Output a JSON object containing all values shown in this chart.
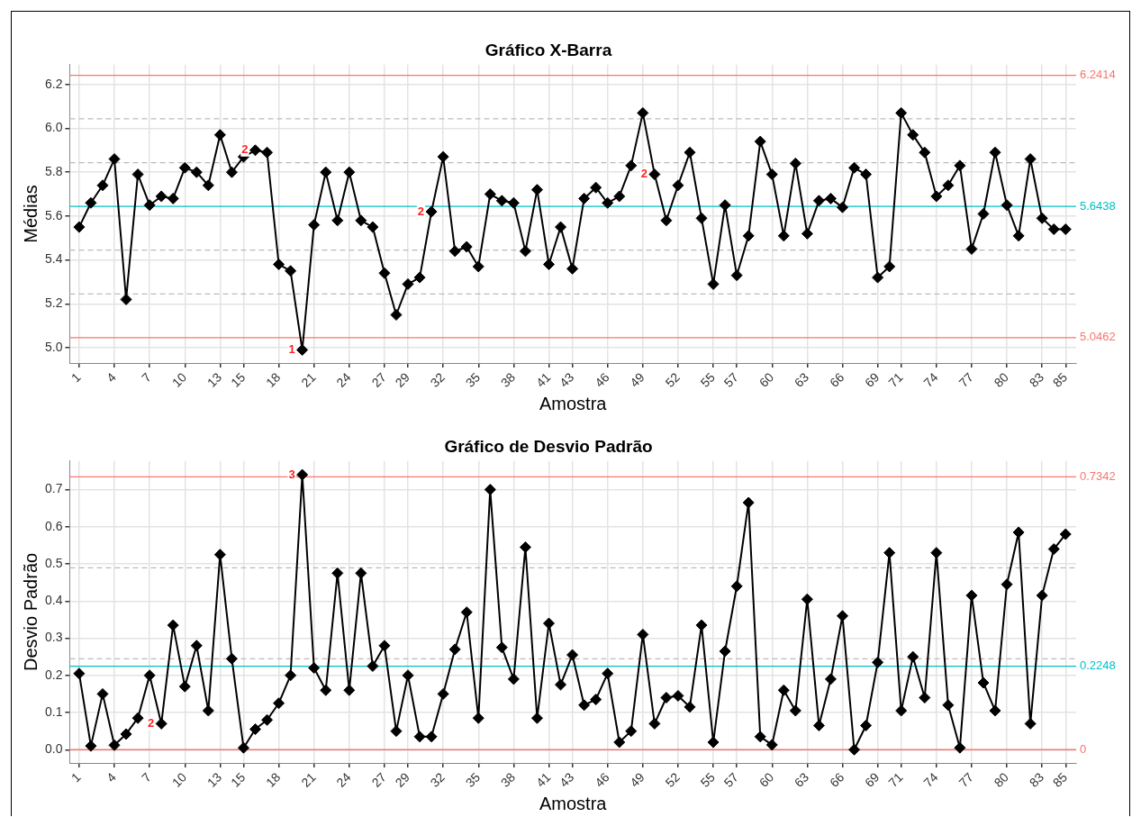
{
  "chart_data": [
    {
      "type": "line",
      "title": "Gráfico X-Barra",
      "xlabel": "Amostra",
      "ylabel": "Médias",
      "color": "#000000",
      "marker": "diamond",
      "grid": true,
      "x": [
        1,
        2,
        3,
        4,
        5,
        6,
        7,
        8,
        9,
        10,
        11,
        12,
        13,
        14,
        15,
        16,
        17,
        18,
        19,
        20,
        21,
        22,
        23,
        24,
        25,
        26,
        27,
        28,
        29,
        30,
        31,
        32,
        33,
        34,
        35,
        36,
        37,
        38,
        39,
        40,
        41,
        42,
        43,
        44,
        45,
        46,
        47,
        48,
        49,
        50,
        51,
        52,
        53,
        54,
        55,
        56,
        57,
        58,
        59,
        60,
        61,
        62,
        63,
        64,
        65,
        66,
        67,
        68,
        69,
        70,
        71,
        72,
        73,
        74,
        75,
        76,
        77,
        78,
        79,
        80,
        81,
        82,
        83,
        84,
        85
      ],
      "values": [
        5.55,
        5.66,
        5.74,
        5.86,
        5.22,
        5.79,
        5.65,
        5.69,
        5.68,
        5.82,
        5.8,
        5.74,
        5.97,
        5.8,
        5.87,
        5.9,
        5.89,
        5.38,
        5.35,
        4.99,
        5.56,
        5.8,
        5.58,
        5.8,
        5.58,
        5.55,
        5.34,
        5.15,
        5.29,
        5.32,
        5.62,
        5.87,
        5.44,
        5.46,
        5.37,
        5.7,
        5.67,
        5.66,
        5.44,
        5.72,
        5.38,
        5.55,
        5.36,
        5.68,
        5.73,
        5.66,
        5.69,
        5.83,
        6.07,
        5.79,
        5.58,
        5.74,
        5.89,
        5.59,
        5.29,
        5.65,
        5.33,
        5.51,
        5.94,
        5.79,
        5.51,
        5.84,
        5.52,
        5.67,
        5.68,
        5.64,
        5.82,
        5.79,
        5.32,
        5.37,
        6.07,
        5.97,
        5.89,
        5.69,
        5.74,
        5.83,
        5.45,
        5.61,
        5.89,
        5.65,
        5.51,
        5.86,
        5.59,
        5.54,
        5.54
      ],
      "xlim": [
        0.2,
        85.9
      ],
      "xticks": [
        1,
        4,
        7,
        10,
        13,
        15,
        18,
        21,
        24,
        27,
        29,
        32,
        35,
        38,
        41,
        43,
        46,
        49,
        52,
        55,
        57,
        60,
        63,
        66,
        69,
        71,
        74,
        77,
        80,
        83,
        85
      ],
      "ylim": [
        4.93,
        6.29
      ],
      "yticks": [
        {
          "value": 5,
          "label": "5.0"
        },
        {
          "value": 5.2,
          "label": "5.2"
        },
        {
          "value": 5.4,
          "label": "5.4"
        },
        {
          "value": 5.6,
          "label": "5.6"
        },
        {
          "value": 5.8,
          "label": "5.8"
        },
        {
          "value": 6,
          "label": "6.0"
        },
        {
          "value": 6.2,
          "label": "6.2"
        }
      ],
      "ref_lines": [
        {
          "axis": "y",
          "value": 6.2414,
          "label": "6.2414",
          "color": "#f8766d"
        },
        {
          "axis": "y",
          "value": 5.6438,
          "label": "5.6438",
          "color": "#00bfc4"
        },
        {
          "axis": "y",
          "value": 5.0462,
          "label": "5.0462",
          "color": "#f8766d"
        },
        {
          "axis": "y",
          "value": 6.043,
          "color": "#bbbbbb",
          "line_style": "dashed"
        },
        {
          "axis": "y",
          "value": 5.843,
          "color": "#bbbbbb",
          "line_style": "dashed"
        },
        {
          "axis": "y",
          "value": 5.445,
          "color": "#bbbbbb",
          "line_style": "dashed"
        },
        {
          "axis": "y",
          "value": 5.245,
          "color": "#bbbbbb",
          "line_style": "dashed"
        }
      ],
      "annotations": [
        {
          "text": "2",
          "x": 16,
          "y": 5.9
        },
        {
          "text": "1",
          "x": 20,
          "y": 4.99
        },
        {
          "text": "2",
          "x": 31,
          "y": 5.62
        },
        {
          "text": "2",
          "x": 50,
          "y": 5.79
        }
      ]
    },
    {
      "type": "line",
      "title": "Gráfico de Desvio Padrão",
      "xlabel": "Amostra",
      "ylabel": "Desvio Padrão",
      "color": "#000000",
      "marker": "diamond",
      "grid": true,
      "x": [
        1,
        2,
        3,
        4,
        5,
        6,
        7,
        8,
        9,
        10,
        11,
        12,
        13,
        14,
        15,
        16,
        17,
        18,
        19,
        20,
        21,
        22,
        23,
        24,
        25,
        26,
        27,
        28,
        29,
        30,
        31,
        32,
        33,
        34,
        35,
        36,
        37,
        38,
        39,
        40,
        41,
        42,
        43,
        44,
        45,
        46,
        47,
        48,
        49,
        50,
        51,
        52,
        53,
        54,
        55,
        56,
        57,
        58,
        59,
        60,
        61,
        62,
        63,
        64,
        65,
        66,
        67,
        68,
        69,
        70,
        71,
        72,
        73,
        74,
        75,
        76,
        77,
        78,
        79,
        80,
        81,
        82,
        83,
        84,
        85
      ],
      "values": [
        0.205,
        0.01,
        0.15,
        0.012,
        0.042,
        0.085,
        0.2,
        0.07,
        0.335,
        0.17,
        0.28,
        0.105,
        0.525,
        0.245,
        0.005,
        0.055,
        0.08,
        0.125,
        0.2,
        0.74,
        0.22,
        0.16,
        0.475,
        0.16,
        0.475,
        0.225,
        0.28,
        0.05,
        0.2,
        0.035,
        0.035,
        0.15,
        0.27,
        0.37,
        0.085,
        0.7,
        0.275,
        0.19,
        0.545,
        0.085,
        0.34,
        0.175,
        0.255,
        0.12,
        0.135,
        0.205,
        0.02,
        0.05,
        0.31,
        0.07,
        0.14,
        0.145,
        0.115,
        0.335,
        0.02,
        0.265,
        0.44,
        0.665,
        0.035,
        0.013,
        0.16,
        0.105,
        0.405,
        0.065,
        0.19,
        0.36,
        0.0,
        0.065,
        0.235,
        0.53,
        0.105,
        0.25,
        0.14,
        0.53,
        0.12,
        0.005,
        0.415,
        0.18,
        0.105,
        0.445,
        0.585,
        0.07,
        0.415,
        0.54,
        0.58
      ],
      "xlim": [
        0.2,
        85.9
      ],
      "xticks": [
        1,
        4,
        7,
        10,
        13,
        15,
        18,
        21,
        24,
        27,
        29,
        32,
        35,
        38,
        41,
        43,
        46,
        49,
        52,
        55,
        57,
        60,
        63,
        66,
        69,
        71,
        74,
        77,
        80,
        83,
        85
      ],
      "ylim": [
        -0.036,
        0.777
      ],
      "yticks": [
        {
          "value": 0,
          "label": "0.0"
        },
        0.1,
        0.2,
        0.3,
        0.4,
        0.5,
        0.6,
        0.7
      ],
      "ref_lines": [
        {
          "axis": "y",
          "value": 0.7342,
          "label": "0.7342",
          "color": "#f8766d"
        },
        {
          "axis": "y",
          "value": 0.2248,
          "label": "0.2248",
          "color": "#00bfc4"
        },
        {
          "axis": "y",
          "value": 0,
          "label": "0",
          "color": "#f8766d"
        },
        {
          "axis": "y",
          "value": 0.4895,
          "color": "#bbbbbb",
          "line_style": "dashed"
        },
        {
          "axis": "y",
          "value": 0.2448,
          "color": "#bbbbbb",
          "line_style": "dashed"
        }
      ],
      "annotations": [
        {
          "text": "3",
          "x": 20,
          "y": 0.74
        },
        {
          "text": "2",
          "x": 8,
          "y": 0.07
        }
      ]
    }
  ]
}
